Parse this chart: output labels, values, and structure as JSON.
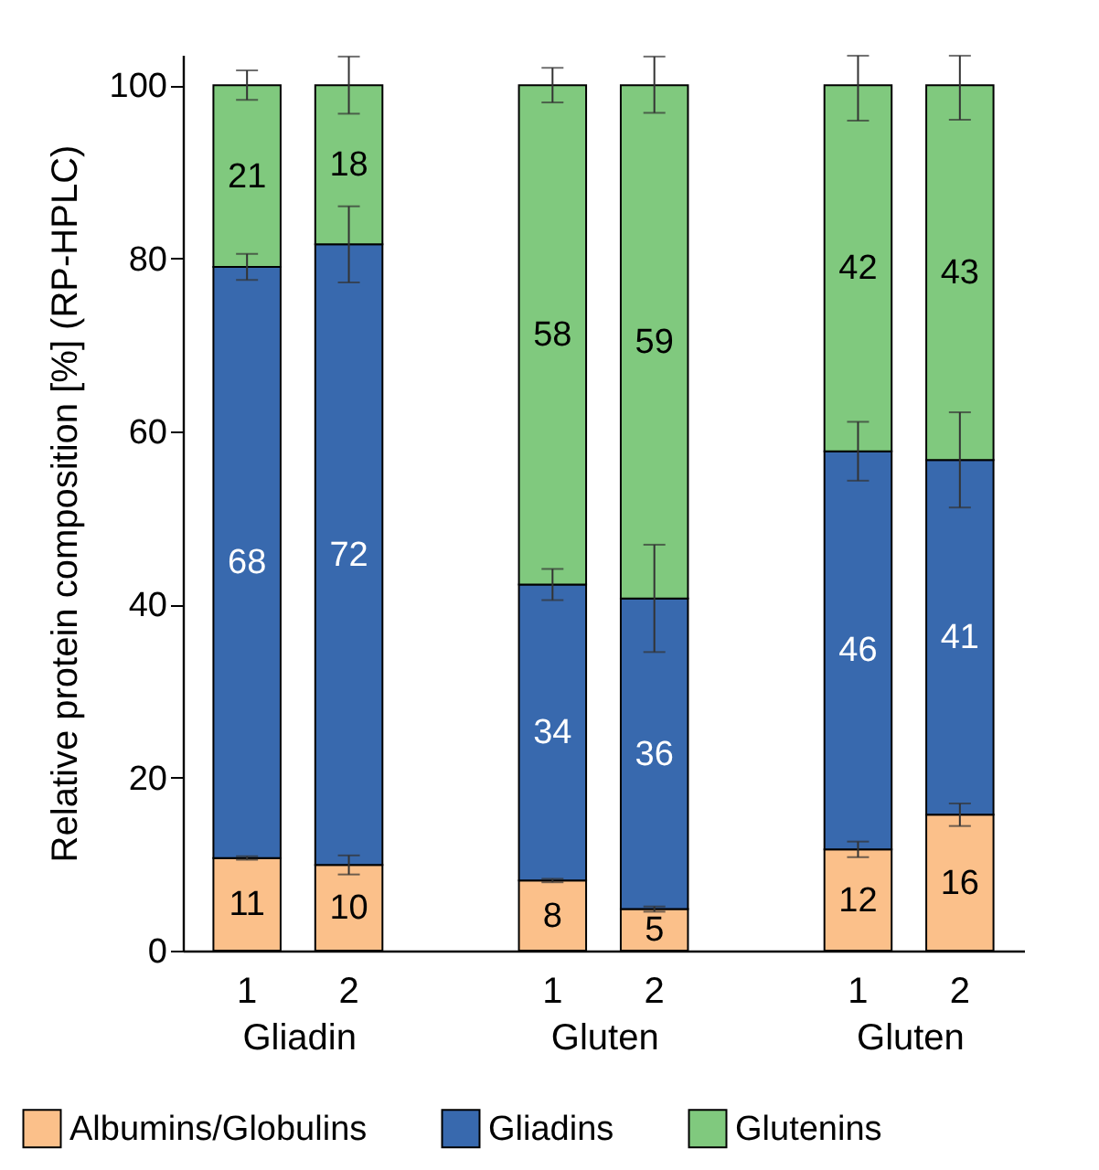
{
  "chart_data": {
    "type": "bar",
    "stacked": true,
    "ylabel": "Relative protein composition [%] (RP-HPLC)",
    "categories": [
      "1",
      "2",
      null,
      "1",
      "2",
      null,
      "1",
      "2"
    ],
    "annotations": [
      "Gliadin",
      "Gluten",
      "Gluten"
    ],
    "series": [
      {
        "name": "Albumins/Globulins",
        "color": "#fbc08a",
        "values": [
          10.7,
          9.9,
          null,
          8.1,
          4.8,
          null,
          11.7,
          15.7
        ],
        "errors": [
          0.2,
          1.1,
          null,
          0.2,
          0.3,
          null,
          0.9,
          1.3
        ],
        "value_labels": [
          "11",
          "10",
          null,
          "8",
          "5",
          null,
          "12",
          "16"
        ]
      },
      {
        "name": "Gliadins",
        "color": "#3869ae",
        "values": [
          68.3,
          71.7,
          null,
          34.2,
          35.9,
          null,
          46.0,
          41.0
        ],
        "errors": [
          1.5,
          4.4,
          null,
          1.8,
          6.2,
          null,
          3.4,
          5.5
        ],
        "value_labels": [
          "68",
          "72",
          null,
          "34",
          "36",
          null,
          "46",
          "41"
        ]
      },
      {
        "name": "Glutenins",
        "color": "#80c97e",
        "values": [
          21.0,
          18.4,
          null,
          57.7,
          59.3,
          null,
          42.3,
          43.3
        ],
        "errors": [
          1.7,
          3.3,
          null,
          2.0,
          [
            96.8,
            103.3
          ],
          null,
          [
            95.9,
            103.4
          ],
          [
            96.0,
            103.4
          ]
        ],
        "value_labels": [
          "21",
          "18",
          null,
          "58",
          "59",
          null,
          "42",
          "43"
        ]
      }
    ],
    "ylim": [
      0,
      103.5
    ],
    "yticks": [
      0,
      20,
      40,
      60,
      80,
      100
    ],
    "legend": "bottom"
  }
}
